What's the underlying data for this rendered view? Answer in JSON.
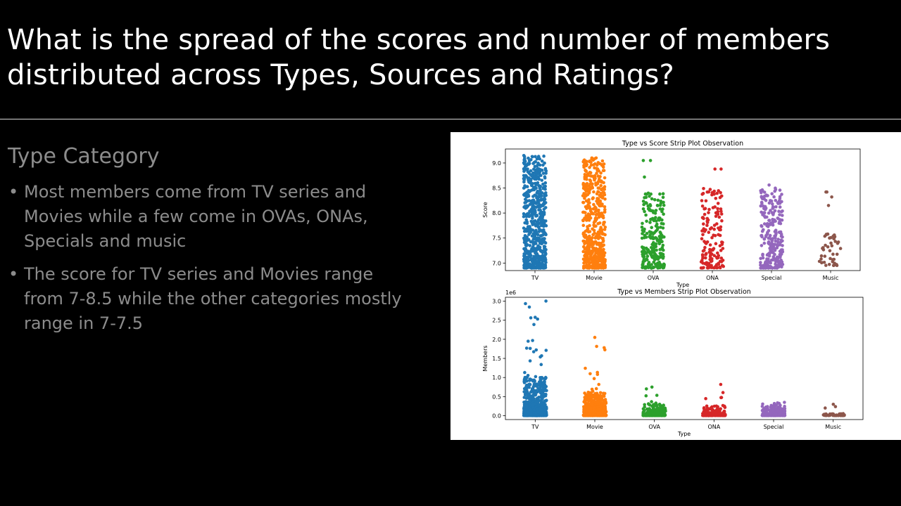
{
  "slide": {
    "title": "What is the spread of the scores and number of members distributed across Types, Sources and Ratings?",
    "subheading": "Type Category",
    "bullets": [
      "Most members come from TV series and Movies while a few come in OVAs, ONAs, Specials and music",
      "The score for TV series and Movies range from 7-8.5 while the other categories mostly range in 7-7.5"
    ],
    "bullet_glyph": "•"
  },
  "chart_data": [
    {
      "type": "scatter",
      "subtype": "strip",
      "title": "Type vs Score Strip Plot Observation",
      "xlabel": "Type",
      "ylabel": "Score",
      "categories": [
        "TV",
        "Movie",
        "OVA",
        "ONA",
        "Special",
        "Music"
      ],
      "colors": [
        "#1f77b4",
        "#ff7f0e",
        "#2ca02c",
        "#d62728",
        "#9467bd",
        "#8c564b"
      ],
      "ylim": [
        6.85,
        9.28
      ],
      "yticks": [
        7.0,
        7.5,
        8.0,
        8.5,
        9.0
      ],
      "ytick_labels": [
        "7.0",
        "7.5",
        "8.0",
        "8.5",
        "9.0"
      ],
      "grid": false,
      "series": [
        {
          "category": "TV",
          "range": [
            6.9,
            9.15
          ],
          "max": 9.15,
          "count": 1100
        },
        {
          "category": "Movie",
          "range": [
            6.9,
            9.1
          ],
          "max": 9.1,
          "count": 520
        },
        {
          "category": "OVA",
          "range": [
            6.9,
            8.4
          ],
          "max": 9.05,
          "outliers": [
            9.05,
            8.72
          ],
          "count": 230
        },
        {
          "category": "ONA",
          "range": [
            6.9,
            8.5
          ],
          "max": 8.88,
          "outliers": [
            8.88
          ],
          "count": 150
        },
        {
          "category": "Special",
          "range": [
            6.9,
            8.5
          ],
          "max": 8.56,
          "count": 260
        },
        {
          "category": "Music",
          "range": [
            6.95,
            7.6
          ],
          "max": 8.42,
          "outliers": [
            8.42,
            8.32,
            8.15
          ],
          "count": 45
        }
      ]
    },
    {
      "type": "scatter",
      "subtype": "strip",
      "title": "Type vs Members Strip Plot Observation",
      "xlabel": "Type",
      "ylabel": "Members",
      "offset_label": "1e6",
      "categories": [
        "TV",
        "Movie",
        "OVA",
        "ONA",
        "Special",
        "Music"
      ],
      "colors": [
        "#1f77b4",
        "#ff7f0e",
        "#2ca02c",
        "#d62728",
        "#9467bd",
        "#8c564b"
      ],
      "ylim": [
        -0.1,
        3.1
      ],
      "yticks": [
        0.0,
        0.5,
        1.0,
        1.5,
        2.0,
        2.5,
        3.0
      ],
      "ytick_labels": [
        "0.0",
        "0.5",
        "1.0",
        "1.5",
        "2.0",
        "2.5",
        "3.0"
      ],
      "grid": false,
      "series": [
        {
          "category": "TV",
          "max": 3.0,
          "typical_max": 1.0,
          "count": 1100
        },
        {
          "category": "Movie",
          "max": 2.05,
          "typical_max": 0.6,
          "count": 520
        },
        {
          "category": "OVA",
          "max": 0.75,
          "typical_max": 0.3,
          "count": 230
        },
        {
          "category": "ONA",
          "max": 0.82,
          "typical_max": 0.25,
          "count": 150
        },
        {
          "category": "Special",
          "max": 0.35,
          "typical_max": 0.25,
          "count": 260
        },
        {
          "category": "Music",
          "max": 0.3,
          "typical_max": 0.05,
          "count": 45
        }
      ]
    }
  ]
}
